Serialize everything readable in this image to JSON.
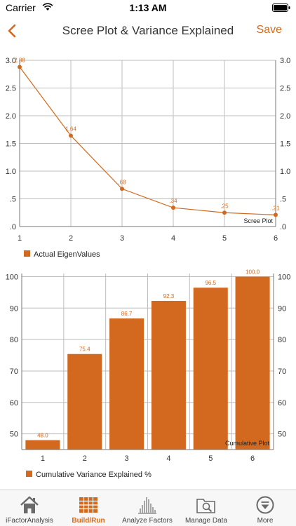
{
  "status": {
    "carrier": "Carrier",
    "time": "1:13 AM"
  },
  "nav": {
    "title": "Scree Plot & Variance Explained",
    "save_label": "Save"
  },
  "colors": {
    "accent": "#d2691e",
    "grid": "#bdbdbd"
  },
  "chart_data": [
    {
      "type": "line",
      "x": [
        1,
        2,
        3,
        4,
        5,
        6
      ],
      "values": [
        2.88,
        1.64,
        0.68,
        0.34,
        0.25,
        0.21
      ],
      "point_labels": [
        "2.88",
        "1.64",
        ".68",
        ".34",
        ".25",
        ".21"
      ],
      "xlim": [
        1,
        6
      ],
      "ylim": [
        0,
        3
      ],
      "x_ticks": [
        "1",
        "2",
        "3",
        "4",
        "5",
        "6"
      ],
      "y_ticks": [
        ".0",
        ".5",
        "1.0",
        "1.5",
        "2.0",
        "2.5",
        "3.0"
      ],
      "y_tick_values": [
        0,
        0.5,
        1,
        1.5,
        2,
        2.5,
        3
      ],
      "annotation": "Scree Plot",
      "legend": "Actual EigenValues",
      "legend_position": "bottom-left",
      "grid": true
    },
    {
      "type": "bar",
      "categories": [
        "1",
        "2",
        "3",
        "4",
        "5",
        "6"
      ],
      "values": [
        48.0,
        75.4,
        86.7,
        92.3,
        96.5,
        100.0
      ],
      "value_labels": [
        "48.0",
        "75.4",
        "86.7",
        "92.3",
        "96.5",
        "100.0"
      ],
      "ylim": [
        45,
        101
      ],
      "y_ticks": [
        "50",
        "60",
        "70",
        "80",
        "90",
        "100"
      ],
      "y_tick_values": [
        50,
        60,
        70,
        80,
        90,
        100
      ],
      "annotation": "Cumulative Plot",
      "legend": "Cumulative Variance Explained %",
      "legend_position": "bottom-left",
      "grid": true
    }
  ],
  "tabs": [
    {
      "label": "iFactorAnalysis",
      "icon": "home-icon",
      "active": false
    },
    {
      "label": "Build/Run",
      "icon": "grid-table-icon",
      "active": true
    },
    {
      "label": "Analyze Factors",
      "icon": "bar-histogram-icon",
      "active": false
    },
    {
      "label": "Manage Data",
      "icon": "folder-search-icon",
      "active": false
    },
    {
      "label": "More",
      "icon": "more-circle-icon",
      "active": false
    }
  ]
}
